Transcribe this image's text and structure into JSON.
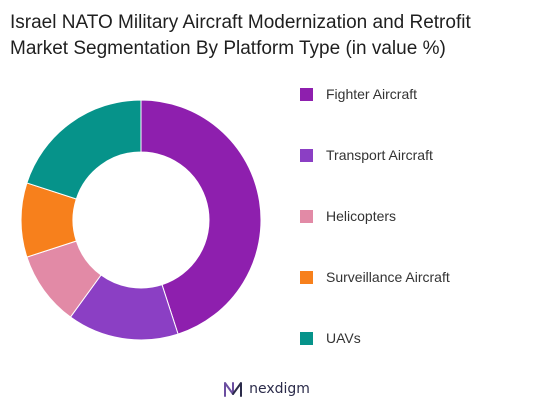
{
  "chart_data": {
    "type": "pie",
    "title": "Israel NATO Military Aircraft Modernization and Retrofit",
    "subtitle": "Market Segmentation By Platform Type (in value %)",
    "categories": [
      "Fighter Aircraft",
      "Transport Aircraft",
      "Helicopters",
      "Surveillance Aircraft",
      "UAVs"
    ],
    "values": [
      45,
      15,
      10,
      10,
      20
    ],
    "colors": [
      "#8e1fae",
      "#8b3fc4",
      "#e28aa6",
      "#f7801c",
      "#06938a"
    ],
    "donut": true,
    "legend_position": "right"
  },
  "brand": {
    "name": "nexdigm",
    "color": "#2b2b4a",
    "icon": "nexdigm-logo-icon"
  }
}
